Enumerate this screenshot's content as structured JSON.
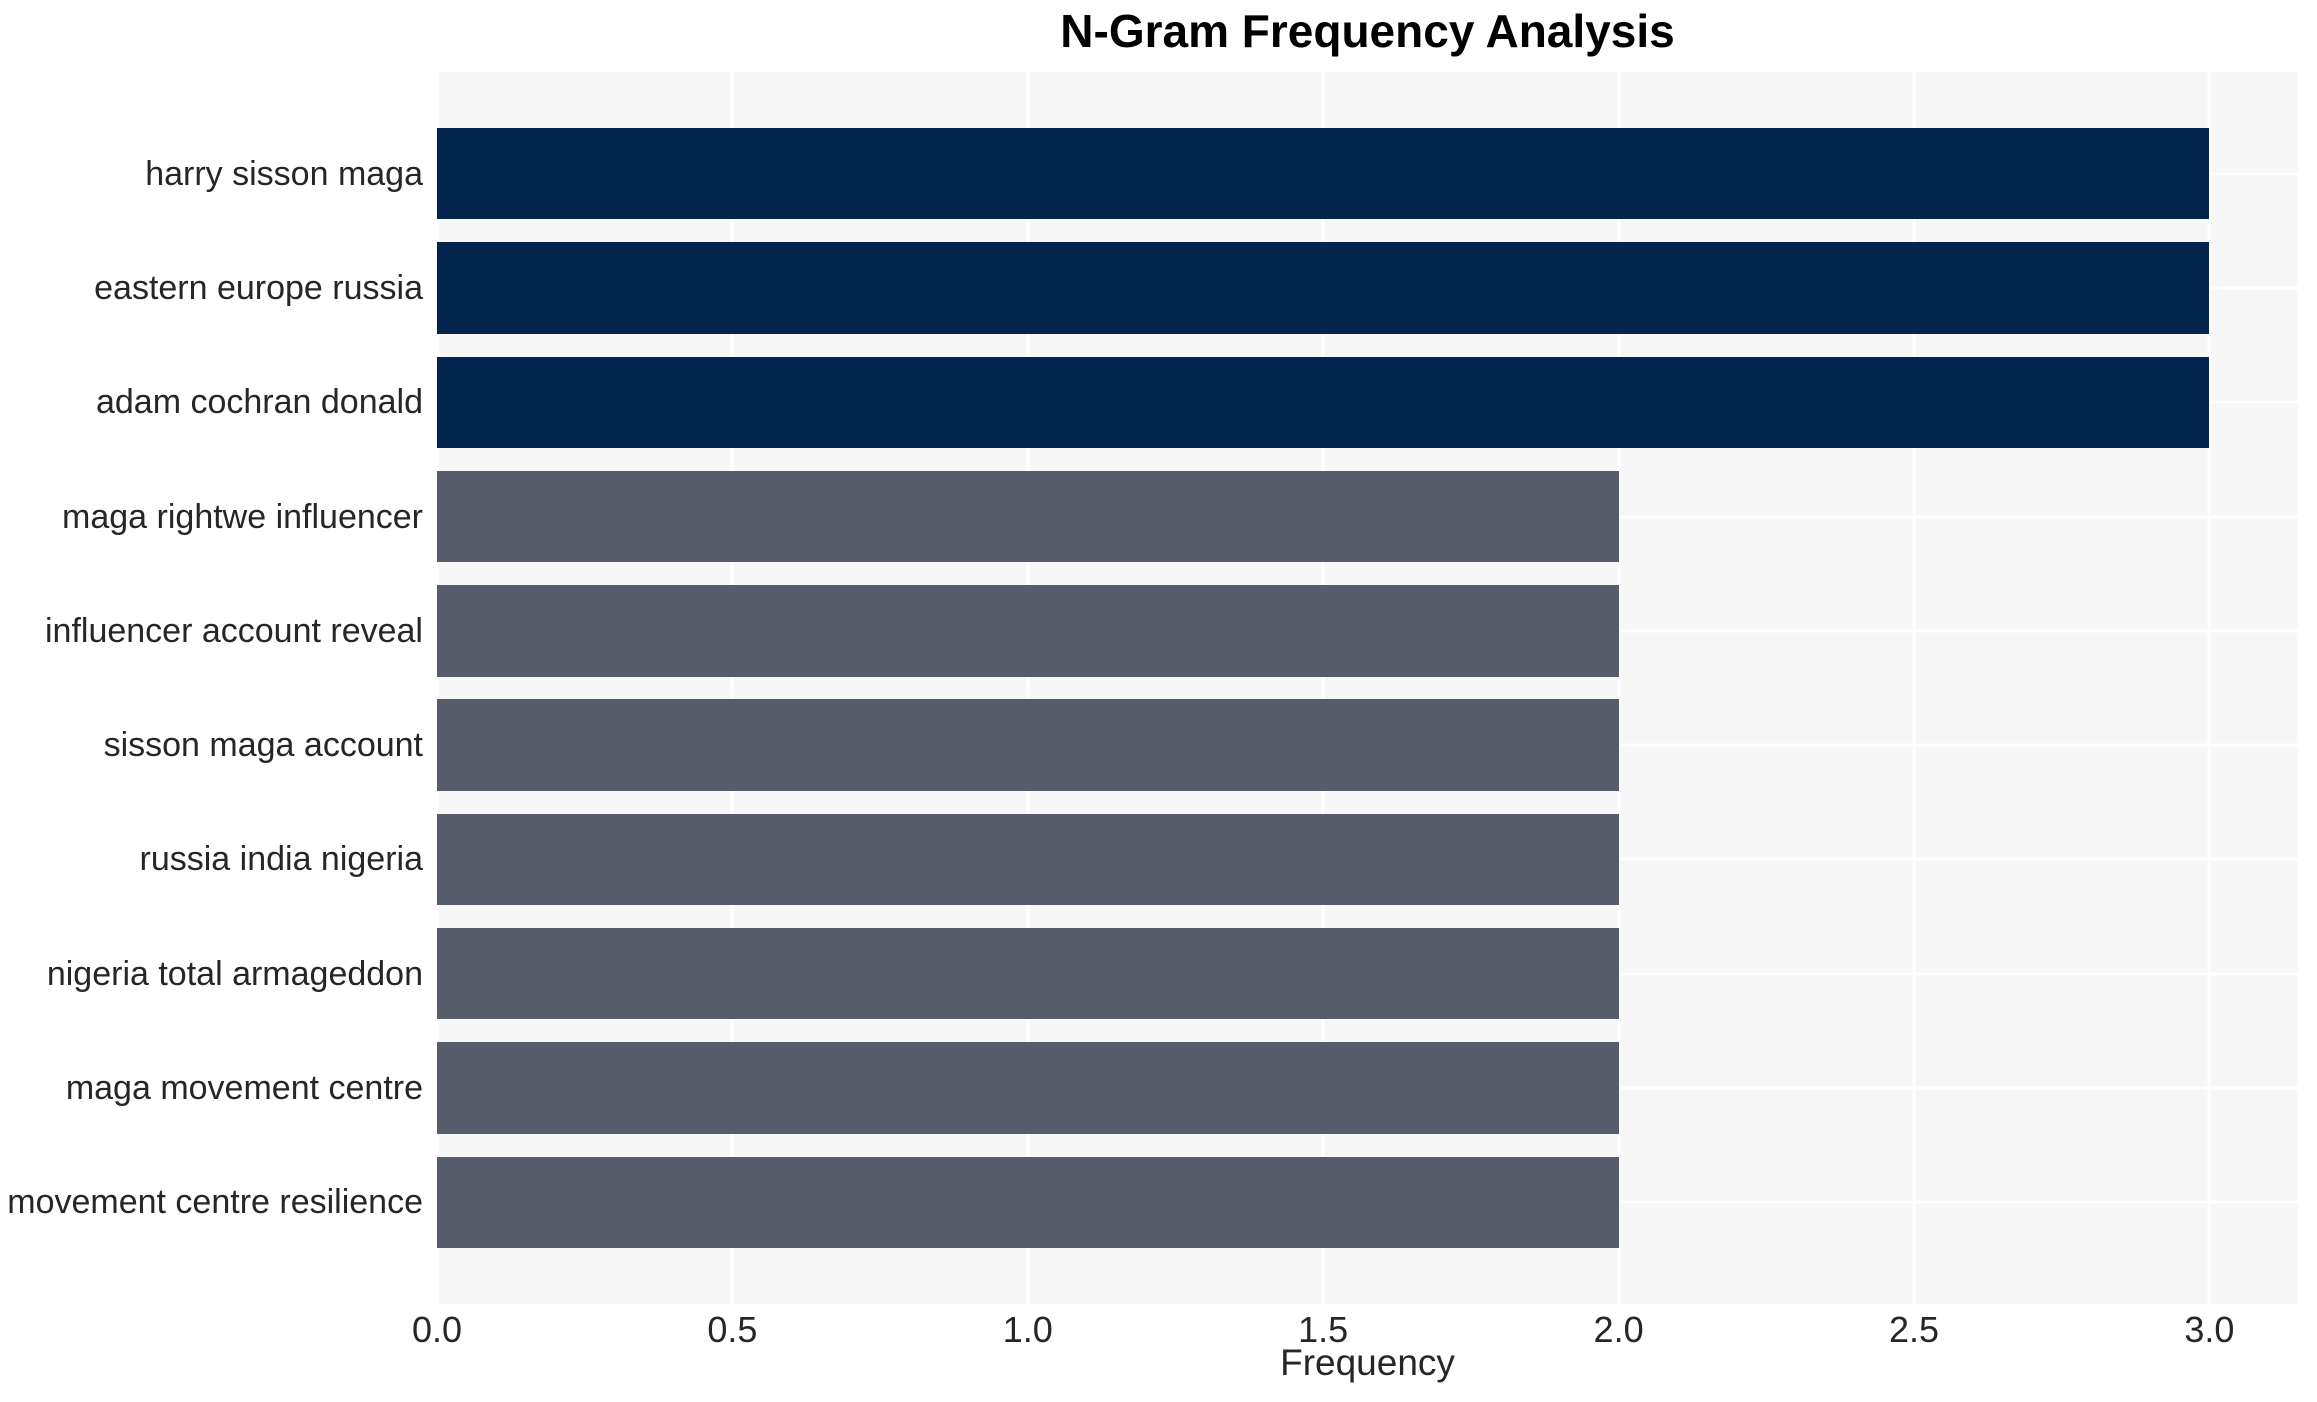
{
  "chart_data": {
    "type": "bar",
    "orientation": "horizontal",
    "title": "N-Gram Frequency Analysis",
    "xlabel": "Frequency",
    "ylabel": "",
    "categories": [
      "harry sisson maga",
      "eastern europe russia",
      "adam cochran donald",
      "maga rightwe influencer",
      "influencer account reveal",
      "sisson maga account",
      "russia india nigeria",
      "nigeria total armageddon",
      "maga movement centre",
      "movement centre resilience"
    ],
    "values": [
      3,
      3,
      3,
      2,
      2,
      2,
      2,
      2,
      2,
      2
    ],
    "bar_colors": [
      "#02244d",
      "#02244d",
      "#02244d",
      "#575c6a",
      "#575c6a",
      "#575c6a",
      "#575c6a",
      "#575c6a",
      "#575c6a",
      "#575c6a"
    ],
    "xlim": [
      0,
      3.15
    ],
    "xticks": [
      "0.0",
      "0.5",
      "1.0",
      "1.5",
      "2.0",
      "2.5",
      "3.0"
    ],
    "xtick_values": [
      0,
      0.5,
      1.0,
      1.5,
      2.0,
      2.5,
      3.0
    ],
    "grid": true,
    "gridline_color": "#ffffff",
    "plot_background": "#f7f7f7",
    "legend": "none"
  }
}
